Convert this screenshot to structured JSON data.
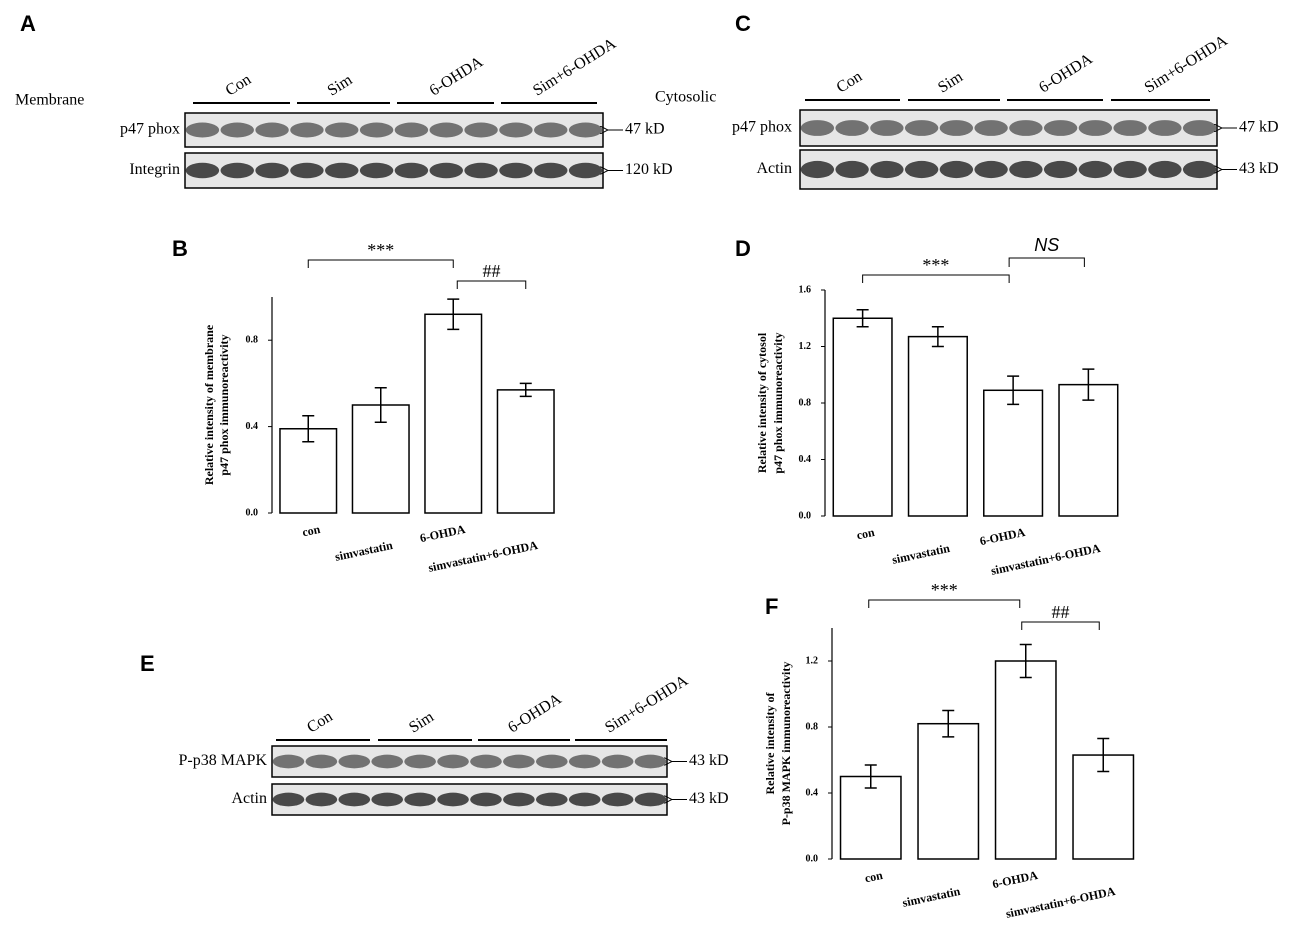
{
  "panel_labels": [
    "A",
    "B",
    "C",
    "D",
    "E",
    "F"
  ],
  "blots": [
    {
      "title": "Membrane",
      "groups": [
        "Con",
        "Sim",
        "6-OHDA",
        "Sim+6-OHDA"
      ],
      "rows": [
        {
          "label": "p47 phox",
          "size": "47 kD"
        },
        {
          "label": "Integrin",
          "size": "120 kD"
        }
      ]
    },
    {
      "title": "Cytosolic",
      "groups": [
        "Con",
        "Sim",
        "6-OHDA",
        "Sim+6-OHDA"
      ],
      "rows": [
        {
          "label": "p47 phox",
          "size": "47 kD"
        },
        {
          "label": "Actin",
          "size": "43 kD"
        }
      ]
    },
    {
      "groups": [
        "Con",
        "Sim",
        "6-OHDA",
        "Sim+6-OHDA"
      ],
      "rows": [
        {
          "label": "P-p38 MAPK",
          "size": "43 kD"
        },
        {
          "label": "Actin",
          "size": "43 kD"
        }
      ]
    }
  ],
  "chart_data": [
    {
      "type": "bar",
      "ylabel": [
        "Relative intensity of membrane",
        "p47 phox immunoreactivity"
      ],
      "categories": [
        "con",
        "simvastatin",
        "6-OHDA",
        "simvastatin+6-OHDA"
      ],
      "values": [
        0.39,
        0.5,
        0.92,
        0.57
      ],
      "errors": [
        0.06,
        0.08,
        0.07,
        0.03
      ],
      "color": "#ffffff",
      "ylim": [
        0,
        1.0
      ],
      "yticks": [
        {
          "value": 0,
          "label": "0.0"
        },
        0.4,
        0.8
      ],
      "annotations": [
        "***",
        "##"
      ]
    },
    {
      "type": "bar",
      "ylabel": [
        "Relative intensity of cytosol",
        "p47 phox immunoreactivity"
      ],
      "categories": [
        "con",
        "simvastatin",
        "6-OHDA",
        "simvastatin+6-OHDA"
      ],
      "values": [
        1.4,
        1.27,
        0.89,
        0.93
      ],
      "errors": [
        0.06,
        0.07,
        0.1,
        0.11
      ],
      "color": "#ffffff",
      "ylim": [
        0,
        1.6
      ],
      "yticks": [
        {
          "value": 0,
          "label": "0.0"
        },
        0.4,
        0.8,
        1.2,
        1.6
      ],
      "annotations": [
        "***",
        "NS"
      ]
    },
    {
      "type": "bar",
      "ylabel": [
        "Relative intensity of",
        "P-p38 MAPK immunoreactivity"
      ],
      "categories": [
        "con",
        "simvastatin",
        "6-OHDA",
        "simvastatin+6-OHDA"
      ],
      "values": [
        0.5,
        0.82,
        1.2,
        0.63
      ],
      "errors": [
        0.07,
        0.08,
        0.1,
        0.1
      ],
      "color": "#ffffff",
      "ylim": [
        0,
        1.4
      ],
      "yticks": [
        {
          "value": 0,
          "label": "0.0"
        },
        0.4,
        0.8,
        1.2
      ],
      "annotations": [
        "***",
        "##"
      ]
    }
  ]
}
